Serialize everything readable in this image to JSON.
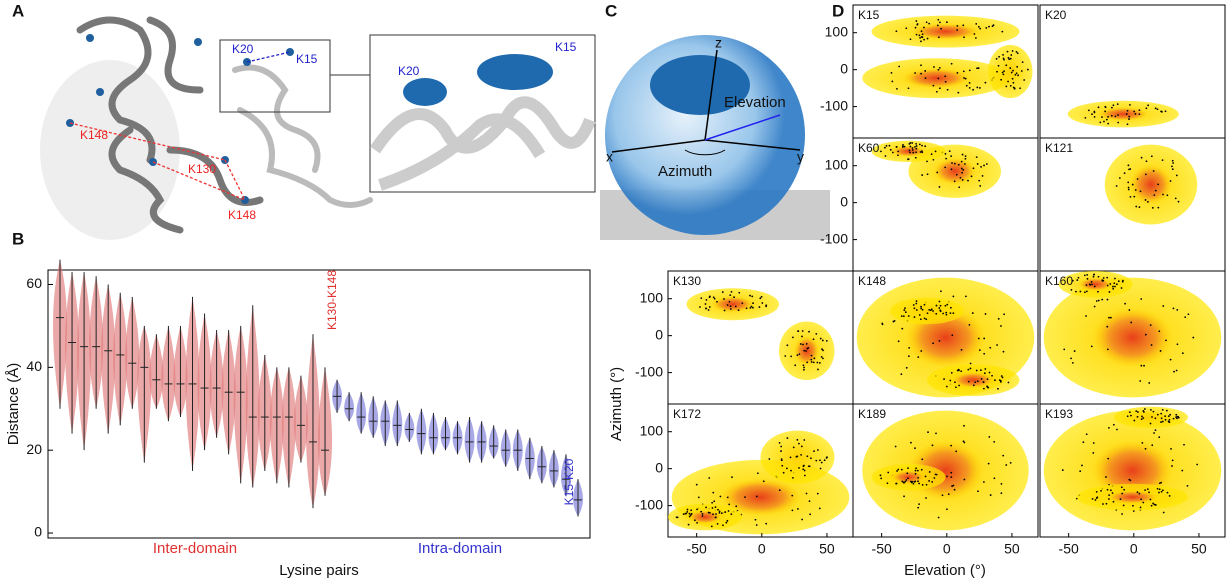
{
  "panel_a": {
    "label": "A",
    "residues": [
      "K20",
      "K15",
      "K148",
      "K130",
      "K148"
    ],
    "inset": [
      "K20",
      "K15"
    ]
  },
  "panel_c": {
    "label": "C",
    "axes": [
      "z",
      "x",
      "y"
    ],
    "elevation": "Elevation",
    "azimuth": "Azimuth"
  },
  "chart_data": [
    {
      "type": "violin",
      "label": "B",
      "ylabel": "Distance (Å)",
      "xlabel": "Lysine pairs",
      "ylim": [
        -1.2,
        63.5
      ],
      "yticks": [
        0,
        20,
        40,
        60
      ],
      "groups": [
        {
          "label": "Inter-domain",
          "color": "#e07a7a",
          "median": [
            52,
            46,
            45,
            45,
            44,
            43,
            41,
            40,
            37,
            36,
            36,
            36,
            35,
            35,
            34,
            34,
            28,
            28,
            28,
            28,
            26,
            22,
            20
          ],
          "min": [
            30,
            24,
            20,
            30,
            24,
            26,
            30,
            17,
            30,
            27,
            28,
            15,
            20,
            23,
            19,
            12,
            11,
            15,
            12,
            11,
            17,
            6,
            9
          ],
          "max": [
            66,
            63,
            63,
            62,
            60,
            58,
            57,
            50,
            48,
            50,
            50,
            57,
            53,
            49,
            49,
            50,
            55,
            43,
            40,
            40,
            38,
            48,
            40
          ],
          "annotation": "K130-K148"
        },
        {
          "label": "Intra-domain",
          "color": "#7a7ad8",
          "median": [
            33,
            30,
            28,
            27,
            27,
            26,
            25,
            24,
            23,
            23,
            23,
            22,
            22,
            21,
            20,
            20,
            18,
            16,
            15,
            13,
            8
          ],
          "min": [
            29,
            27,
            24,
            23,
            21,
            21,
            22,
            19,
            19,
            20,
            19,
            17,
            17,
            18,
            16,
            15,
            13,
            12,
            11,
            9,
            4
          ],
          "max": [
            37,
            34,
            34,
            33,
            32,
            32,
            29,
            30,
            29,
            28,
            27,
            28,
            27,
            26,
            25,
            25,
            23,
            21,
            20,
            19,
            13
          ],
          "annotation": "K15-K20"
        }
      ]
    },
    {
      "type": "density-grid",
      "label": "D",
      "xlabel": "Elevation (°)",
      "ylabel": "Azimuth (°)",
      "xlim": [
        -72,
        70
      ],
      "ylim": [
        -185,
        175
      ],
      "xticks": [
        -50,
        0,
        50
      ],
      "yticks": [
        -100,
        0,
        100
      ],
      "panels": [
        "K15",
        "K20",
        "K60",
        "K121",
        "K130",
        "K148",
        "K160",
        "K172",
        "K189",
        "K193"
      ]
    }
  ]
}
